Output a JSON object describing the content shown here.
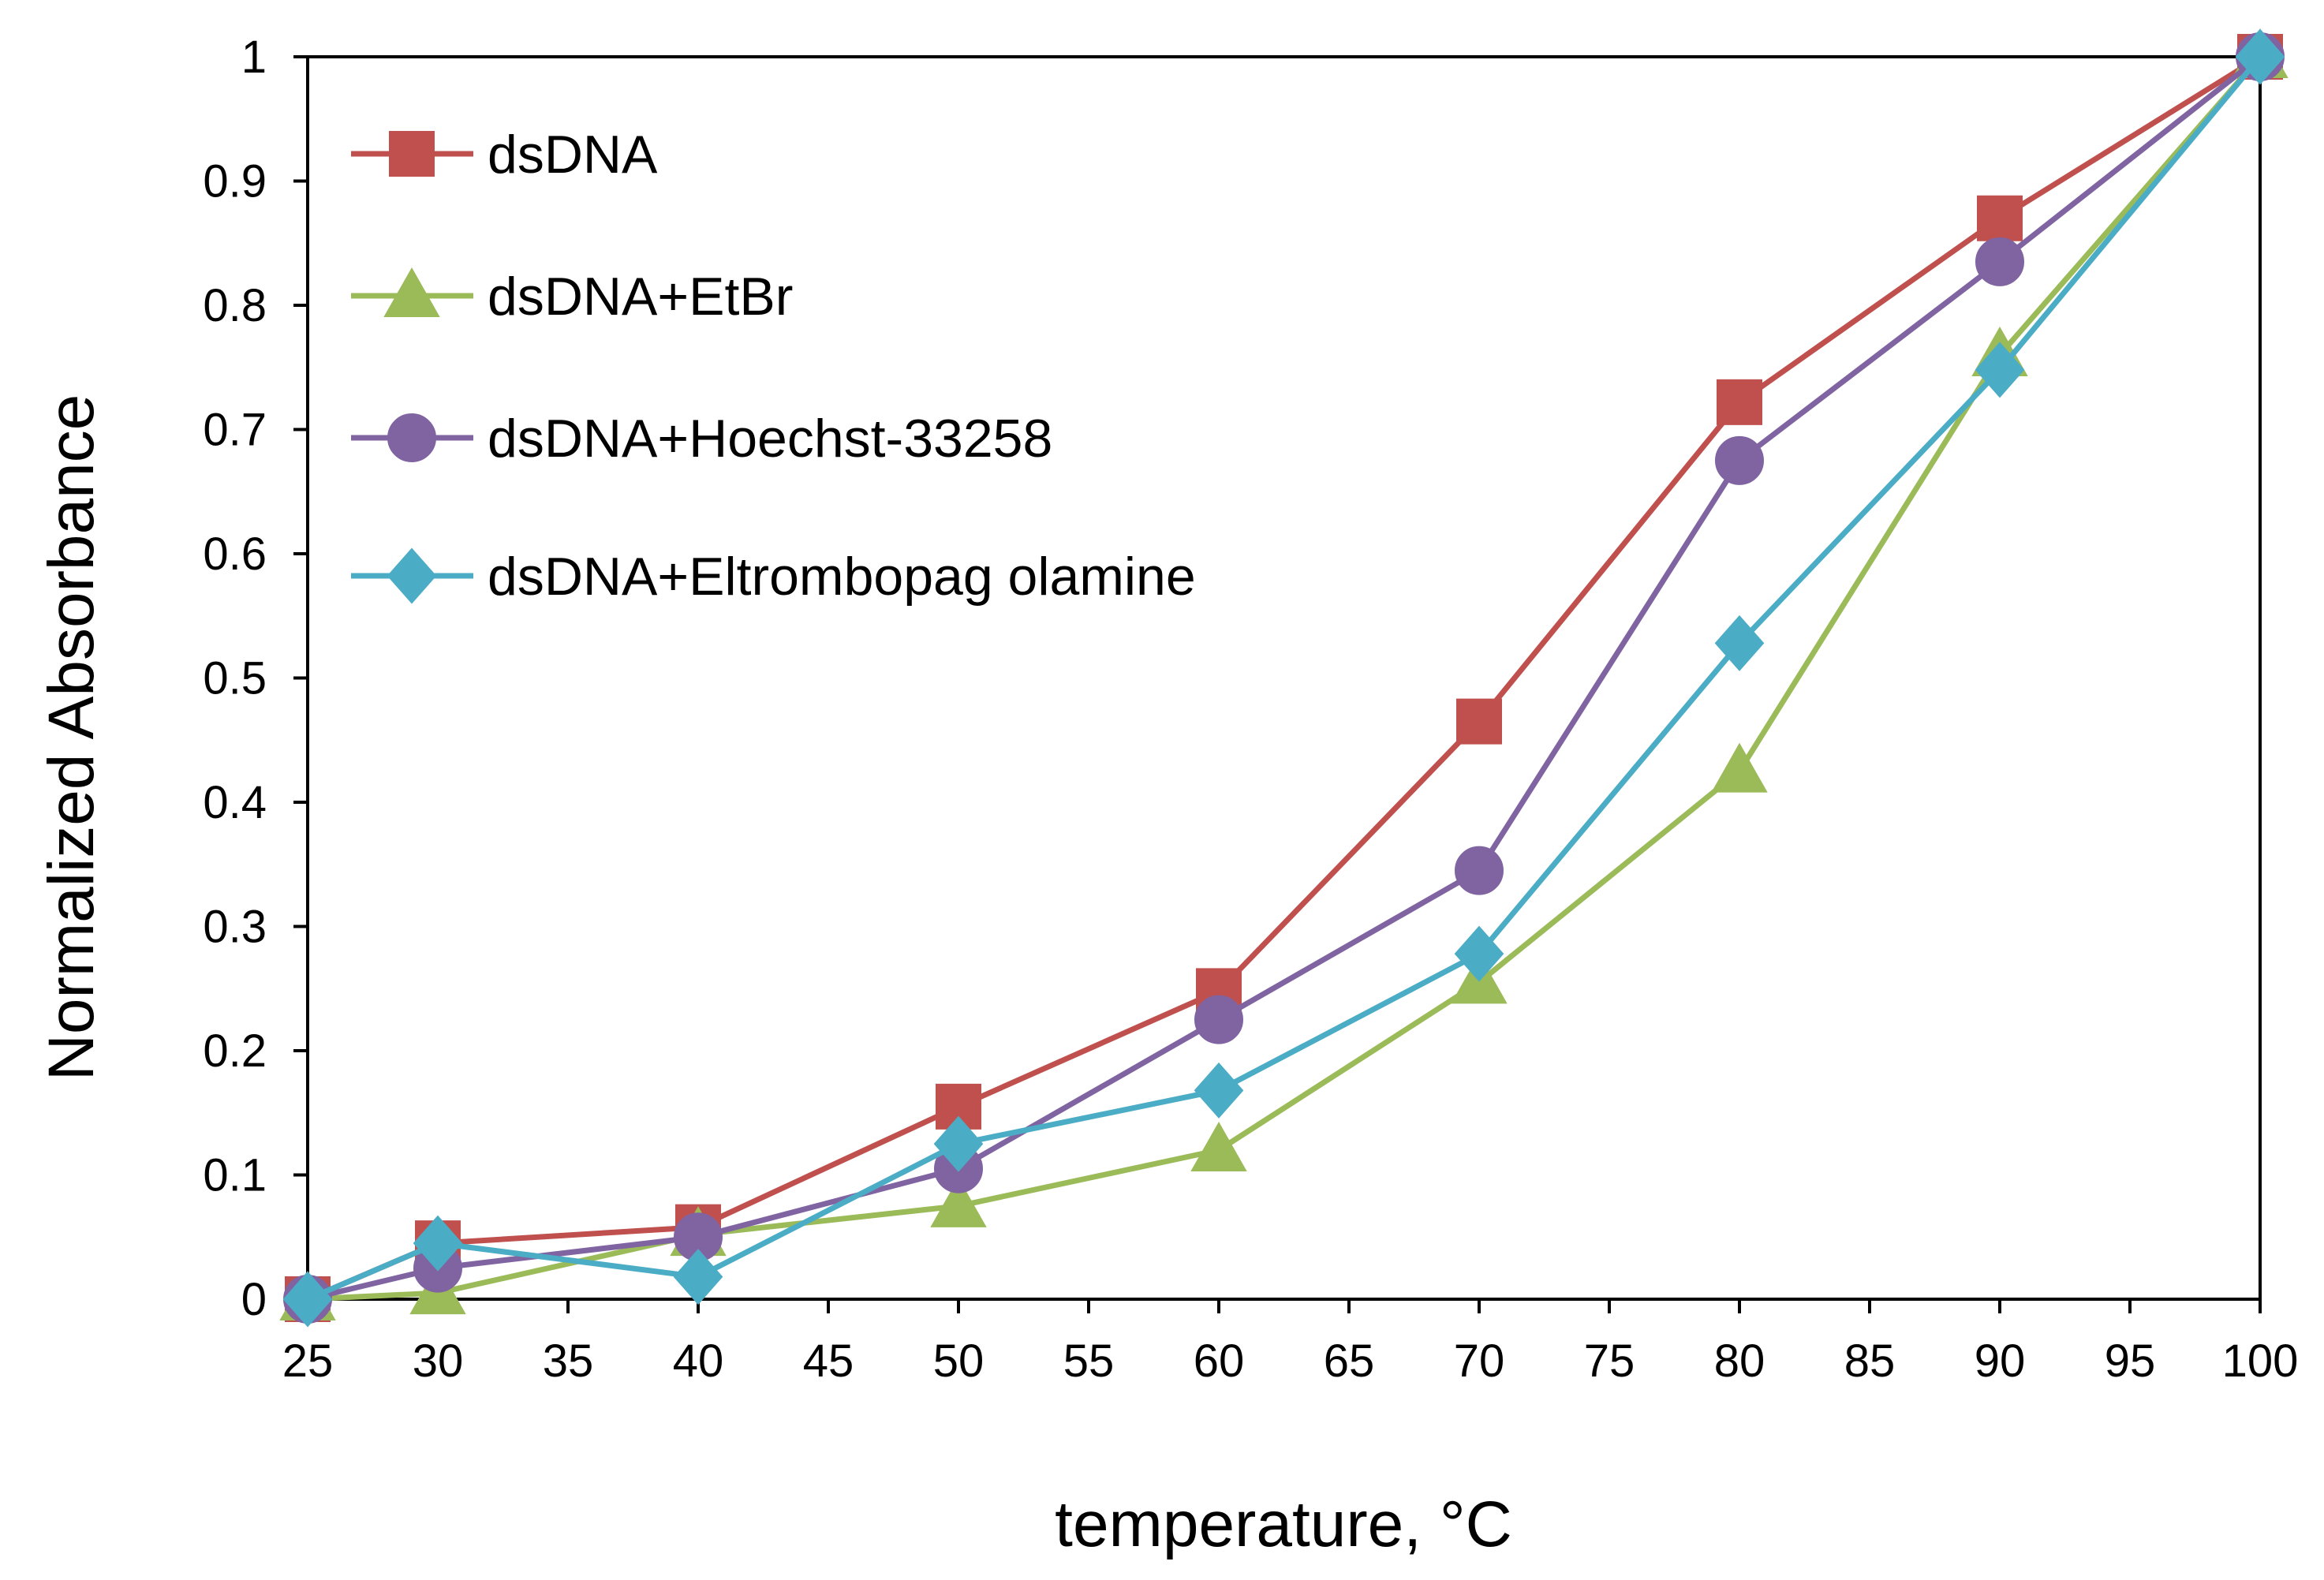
{
  "chart_data": {
    "type": "line",
    "title": "",
    "xlabel": "temperature, °C",
    "ylabel": "Normalized Absorbance",
    "x": [
      25,
      30,
      40,
      50,
      60,
      70,
      80,
      90,
      100
    ],
    "xlim": [
      25,
      100
    ],
    "ylim": [
      0,
      1
    ],
    "xticks": [
      "25",
      "30",
      "35",
      "40",
      "45",
      "50",
      "55",
      "60",
      "65",
      "70",
      "75",
      "80",
      "85",
      "90",
      "95",
      "100"
    ],
    "yticks": [
      "0",
      "0.1",
      "0.2",
      "0.3",
      "0.4",
      "0.5",
      "0.6",
      "0.7",
      "0.8",
      "0.9",
      "1"
    ],
    "legend_position": "top-left",
    "grid": false,
    "series": [
      {
        "name": "dsDNA",
        "color": "#c0504d",
        "marker": "square",
        "values": [
          0,
          0.045,
          0.058,
          0.155,
          0.248,
          0.465,
          0.722,
          0.87,
          1.0
        ]
      },
      {
        "name": "dsDNA+EtBr",
        "color": "#9bbb59",
        "marker": "triangle",
        "values": [
          0,
          0.005,
          0.052,
          0.075,
          0.12,
          0.255,
          0.425,
          0.76,
          1.0
        ]
      },
      {
        "name": "dsDNA+Hoechst-33258",
        "color": "#8064a2",
        "marker": "circle",
        "values": [
          0,
          0.025,
          0.05,
          0.105,
          0.225,
          0.345,
          0.675,
          0.835,
          1.0
        ]
      },
      {
        "name": "dsDNA+Eltrombopag olamine",
        "color": "#4bacc6",
        "marker": "diamond",
        "values": [
          0,
          0.045,
          0.018,
          0.125,
          0.168,
          0.278,
          0.528,
          0.748,
          1.0
        ]
      }
    ]
  }
}
